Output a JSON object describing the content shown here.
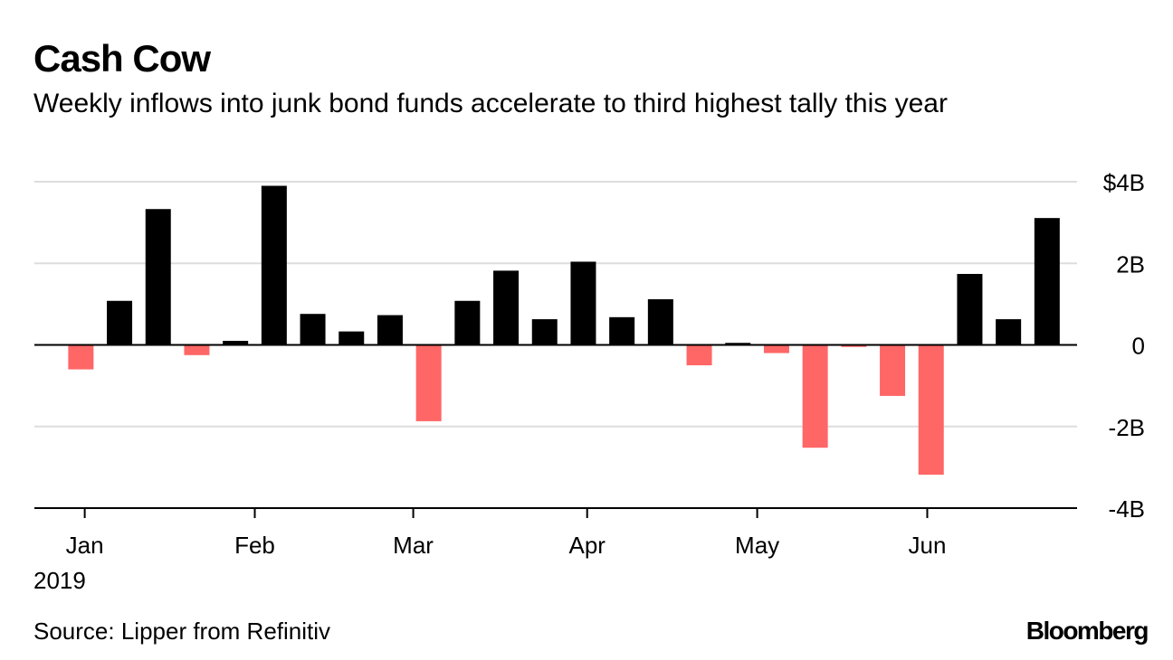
{
  "header": {
    "title": "Cash Cow",
    "subtitle": "Weekly inflows into junk bond funds accelerate to third highest tally this year"
  },
  "footer": {
    "source": "Source: Lipper from Refinitiv",
    "brand": "Bloomberg"
  },
  "colors": {
    "positive": "#000000",
    "negative": "#ff6666",
    "grid": "#dddddd",
    "axis": "#000000"
  },
  "chart_data": {
    "type": "bar",
    "title": "Cash Cow",
    "subtitle": "Weekly inflows into junk bond funds accelerate to third highest tally this year",
    "xlabel": "",
    "ylabel": "",
    "unit": "USD billions",
    "ylim": [
      -4,
      4
    ],
    "y_ticks": [
      {
        "value": 4,
        "label": "$4B"
      },
      {
        "value": 2,
        "label": "2B"
      },
      {
        "value": 0,
        "label": "0"
      },
      {
        "value": -2,
        "label": "-2B"
      },
      {
        "value": -4,
        "label": "-4B"
      }
    ],
    "x_ticks": [
      {
        "label": "Jan",
        "week": 0.6
      },
      {
        "label": "Feb",
        "week": 5.0
      },
      {
        "label": "Mar",
        "week": 9.1
      },
      {
        "label": "Apr",
        "week": 13.6
      },
      {
        "label": "May",
        "week": 18.0
      },
      {
        "label": "Jun",
        "week": 22.4
      }
    ],
    "year_label": "2019",
    "grid": true,
    "legend": "none",
    "values": [
      -0.6,
      1.08,
      3.33,
      -0.25,
      0.1,
      3.9,
      0.76,
      0.33,
      0.73,
      -1.87,
      1.08,
      1.82,
      0.63,
      2.04,
      0.68,
      1.12,
      -0.5,
      0.05,
      -0.2,
      -2.52,
      -0.05,
      -1.25,
      -3.18,
      1.74,
      0.63,
      3.11
    ]
  }
}
